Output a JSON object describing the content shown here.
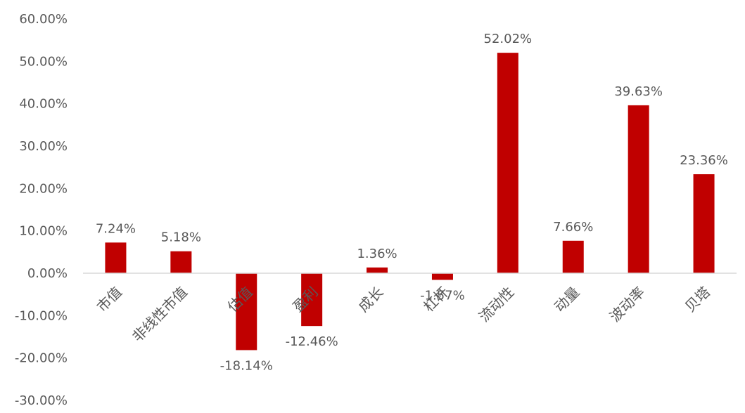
{
  "chart_data": {
    "type": "bar",
    "categories": [
      "市值",
      "非线性市值",
      "估值",
      "盈利",
      "成长",
      "杠杆",
      "流动性",
      "动量",
      "波动率",
      "贝塔"
    ],
    "values": [
      7.24,
      5.18,
      -18.14,
      -12.46,
      1.36,
      -1.57,
      52.02,
      7.66,
      39.63,
      23.36
    ],
    "data_labels": [
      "7.24%",
      "5.18%",
      "-18.14%",
      "-12.46%",
      "1.36%",
      "-1.57%",
      "52.02%",
      "7.66%",
      "39.63%",
      "23.36%"
    ],
    "yticks": [
      60,
      50,
      40,
      30,
      20,
      10,
      0,
      -10,
      -20,
      -30
    ],
    "ytick_labels": [
      "60.00%",
      "50.00%",
      "40.00%",
      "30.00%",
      "20.00%",
      "10.00%",
      "0.00%",
      "-10.00%",
      "-20.00%",
      "-30.00%"
    ],
    "ylim": [
      -30,
      60
    ],
    "bar_color": "#c00000",
    "axis_color": "#d9d9d9",
    "grid": false,
    "legend": "none"
  }
}
